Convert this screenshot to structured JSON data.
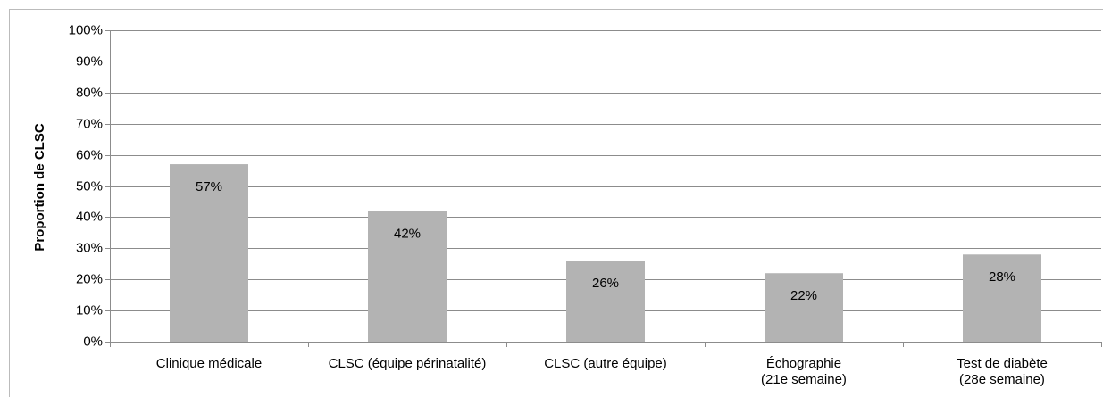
{
  "chart_data": {
    "type": "bar",
    "y_axis_label": "Proportion de CLSC",
    "categories": [
      "Clinique médicale",
      "CLSC (équipe périnatalité)",
      "CLSC (autre équipe)",
      "Échographie\n(21e semaine)",
      "Test de diabète\n(28e semaine)"
    ],
    "values": [
      57,
      42,
      26,
      22,
      28
    ],
    "value_labels": [
      "57%",
      "42%",
      "26%",
      "22%",
      "28%"
    ],
    "color": "#b3b3b3",
    "ylim": [
      0,
      100
    ],
    "yticks": [
      {
        "value": 0,
        "label": "0%"
      },
      {
        "value": 10,
        "label": "10%"
      },
      {
        "value": 20,
        "label": "20%"
      },
      {
        "value": 30,
        "label": "30%"
      },
      {
        "value": 40,
        "label": "40%"
      },
      {
        "value": 50,
        "label": "50%"
      },
      {
        "value": 60,
        "label": "60%"
      },
      {
        "value": 70,
        "label": "70%"
      },
      {
        "value": 80,
        "label": "80%"
      },
      {
        "value": 90,
        "label": "90%"
      },
      {
        "value": 100,
        "label": "100%"
      }
    ],
    "grid": true
  }
}
